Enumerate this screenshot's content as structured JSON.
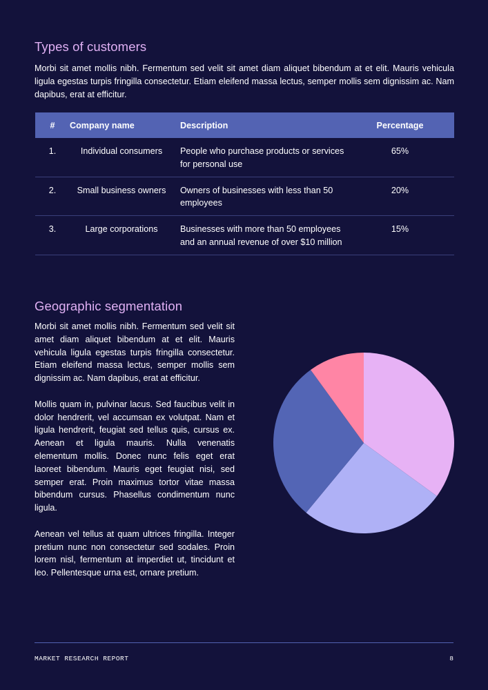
{
  "section1": {
    "title": "Types of customers",
    "body": "Morbi sit amet mollis nibh. Fermentum sed velit sit amet diam aliquet bibendum at et elit. Mauris vehicula ligula egestas turpis fringilla consectetur. Etiam eleifend massa lectus, semper mollis sem dignissim ac. Nam dapibus, erat at efficitur."
  },
  "table": {
    "headers": [
      "#",
      "Company name",
      "Description",
      "Percentage"
    ],
    "rows": [
      {
        "num": "1.",
        "name": "Individual consumers",
        "description": "People who purchase products or services for personal use",
        "percentage": "65%"
      },
      {
        "num": "2.",
        "name": "Small business owners",
        "description": "Owners of businesses with less than 50 employees",
        "percentage": "20%"
      },
      {
        "num": "3.",
        "name": "Large corporations",
        "description": "Businesses with more than 50 employees and an annual revenue of over $10 million",
        "percentage": "15%"
      }
    ]
  },
  "section2": {
    "title": "Geographic segmentation",
    "paragraphs": [
      "Morbi sit amet mollis nibh. Fermentum sed velit sit amet diam aliquet bibendum at et elit. Mauris vehicula ligula egestas turpis fringilla consectetur. Etiam eleifend massa lectus, semper mollis sem dignissim ac. Nam dapibus, erat at efficitur.",
      "Mollis quam in, pulvinar lacus. Sed faucibus velit in dolor hendrerit, vel accumsan ex volutpat. Nam et ligula hendrerit, feugiat sed tellus quis, cursus ex. Aenean et ligula mauris. Nulla venenatis elementum mollis. Donec nunc felis eget erat laoreet bibendum. Mauris eget feugiat nisi, sed semper erat. Proin maximus tortor vitae massa bibendum cursus. Phasellus condimentum nunc ligula.",
      "Aenean vel tellus at quam ultrices fringilla. Integer pretium nunc non consectetur sed sodales. Proin lorem nisl, fermentum at imperdiet ut, tincidunt et leo. Pellentesque urna est, ornare pretium."
    ]
  },
  "chart_data": {
    "type": "pie",
    "title": "",
    "slices": [
      {
        "label": "",
        "value": 35,
        "color": "#e7b2f5"
      },
      {
        "label": "",
        "value": 26,
        "color": "#afb1f6"
      },
      {
        "label": "",
        "value": 29,
        "color": "#5365b5"
      },
      {
        "label": "",
        "value": 10,
        "color": "#ff85a5"
      }
    ]
  },
  "footer": {
    "label": "MARKET RESEARCH REPORT",
    "page": "8"
  },
  "colors": {
    "background": "#13123b",
    "heading": "#e0b0f4",
    "table_header": "#5363b3",
    "divider": "#3a3f7a"
  }
}
